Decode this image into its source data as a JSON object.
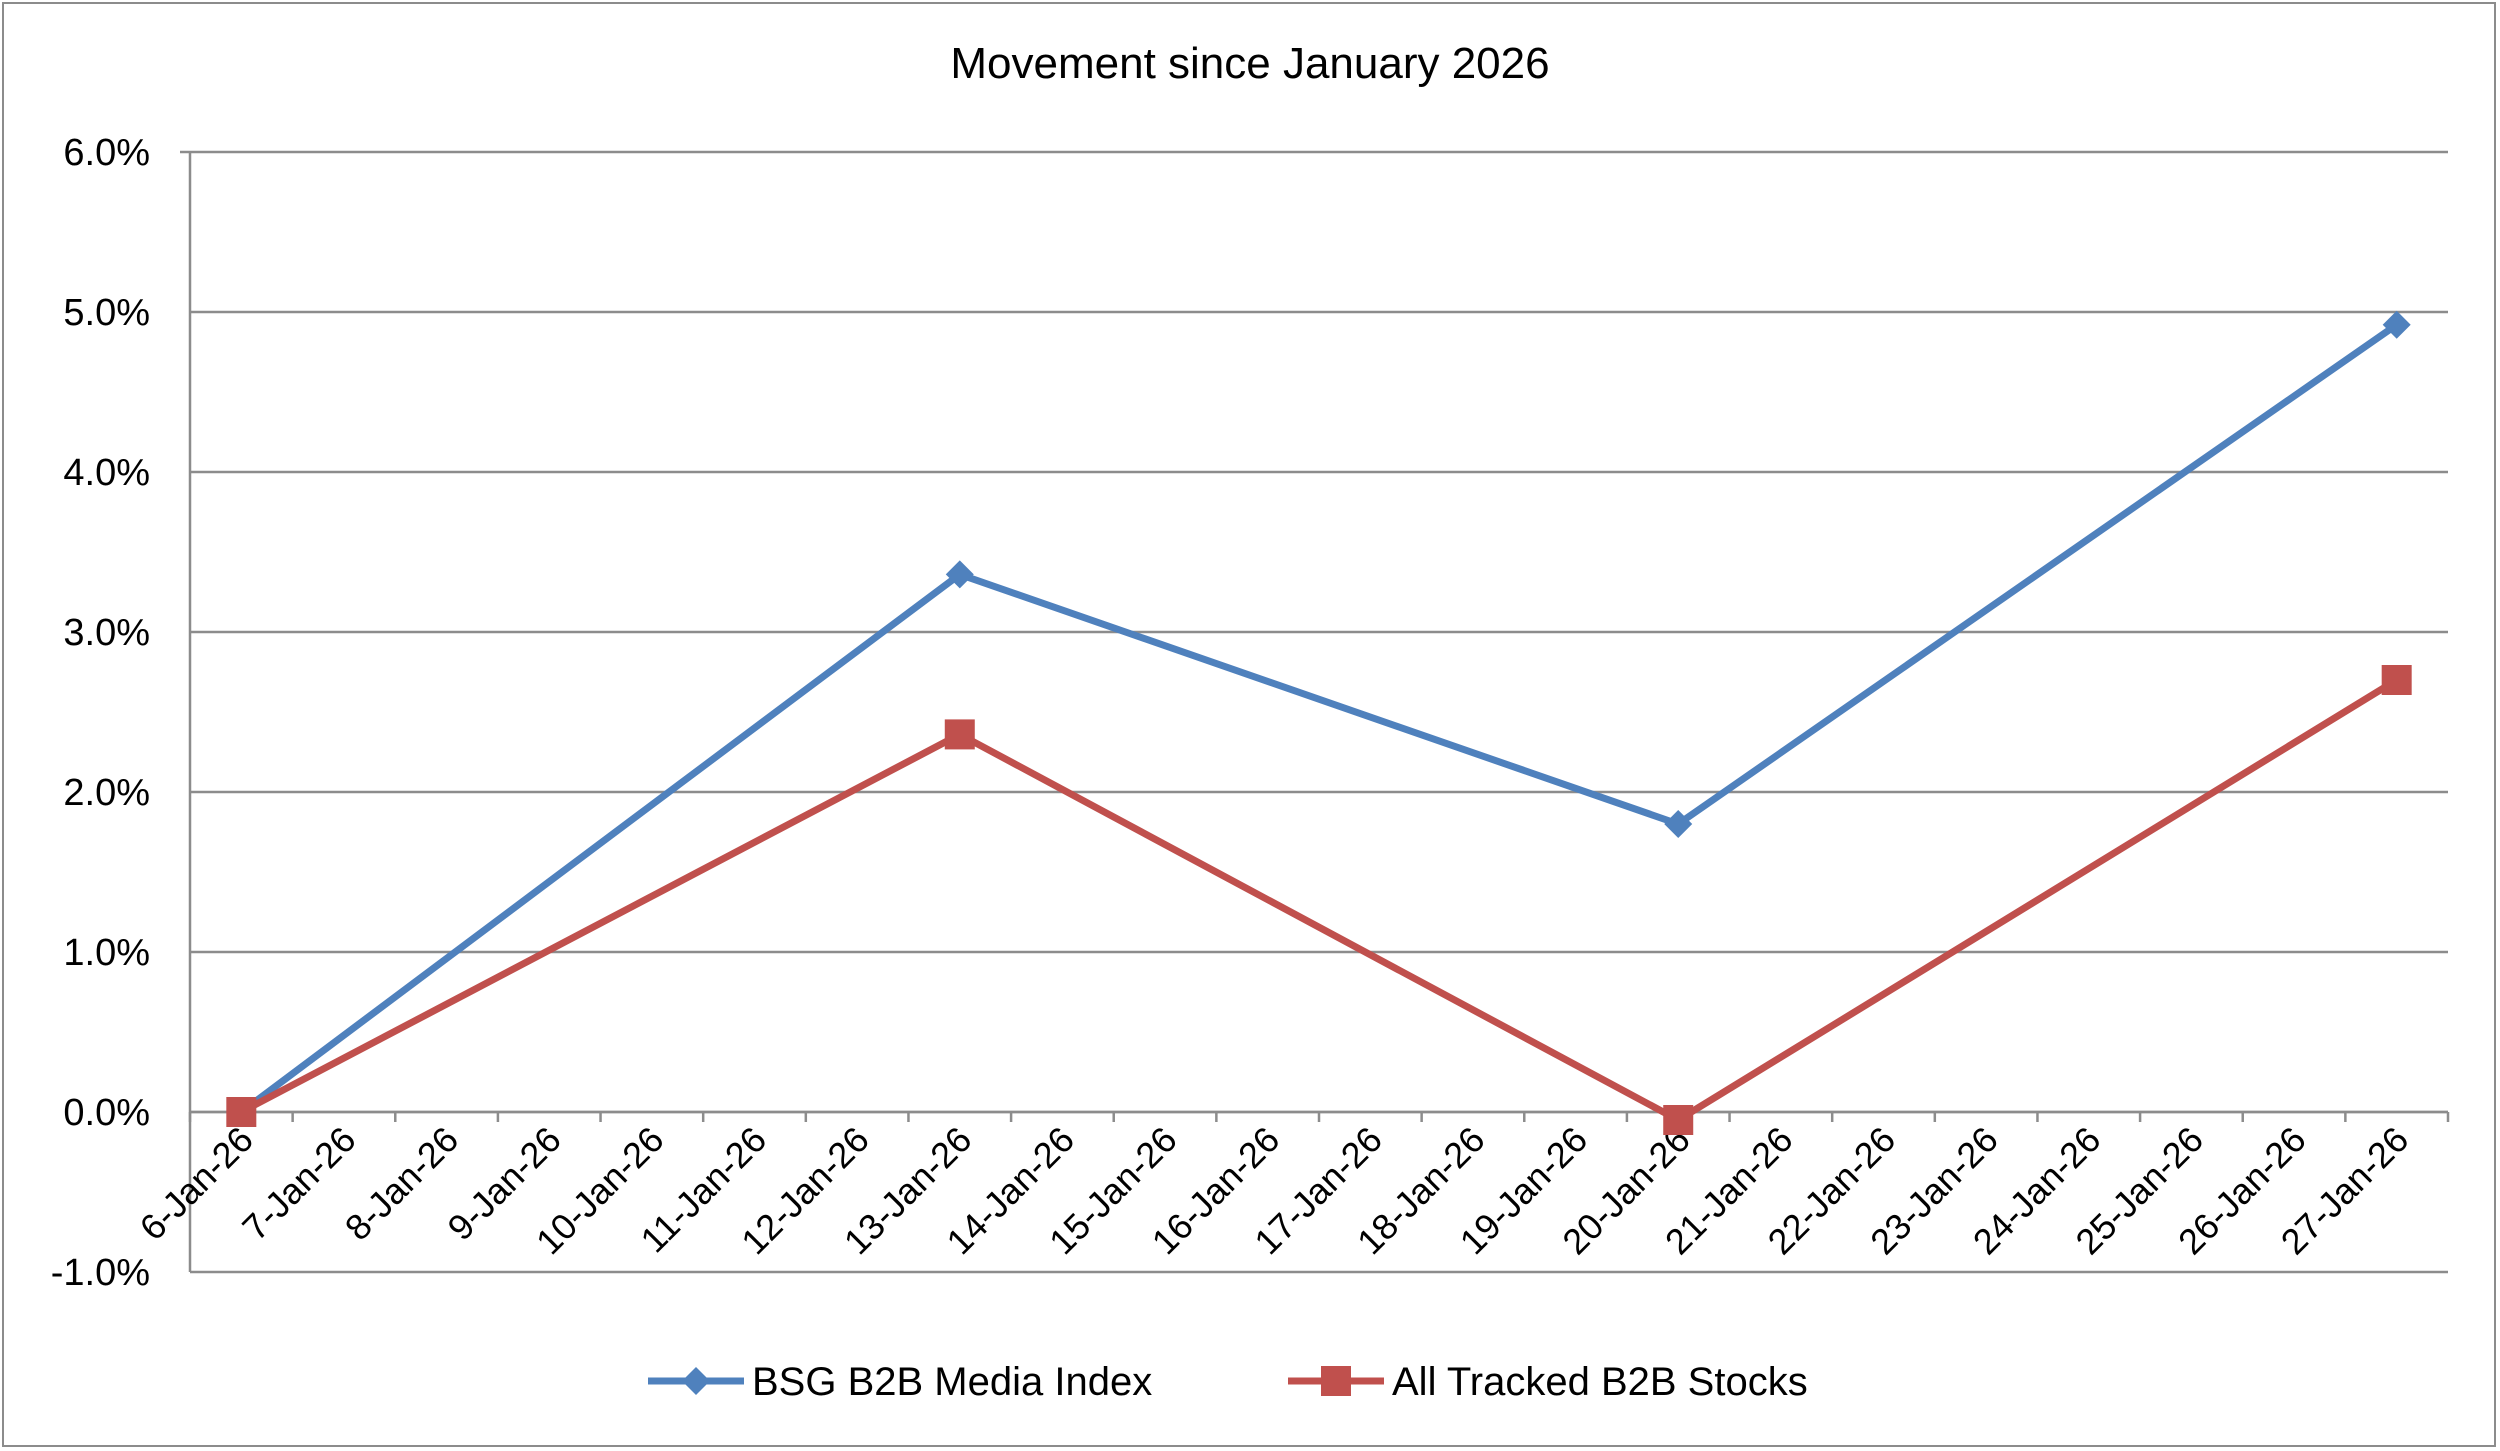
{
  "chart_data": {
    "type": "line",
    "title": "Movement since January 2026",
    "xlabel": "",
    "ylabel": "",
    "categories": [
      "6-Jan-26",
      "7-Jan-26",
      "8-Jan-26",
      "9-Jan-26",
      "10-Jan-26",
      "11-Jan-26",
      "12-Jan-26",
      "13-Jan-26",
      "14-Jan-26",
      "15-Jan-26",
      "16-Jan-26",
      "17-Jan-26",
      "18-Jan-26",
      "19-Jan-26",
      "20-Jan-26",
      "21-Jan-26",
      "22-Jan-26",
      "23-Jan-26",
      "24-Jan-26",
      "25-Jan-26",
      "26-Jan-26",
      "27-Jan-26"
    ],
    "y_ticks": [
      "-1.0%",
      "0.0%",
      "1.0%",
      "2.0%",
      "3.0%",
      "4.0%",
      "5.0%",
      "6.0%"
    ],
    "ylim": [
      -1.0,
      6.0
    ],
    "grid": true,
    "legend_position": "bottom",
    "series": [
      {
        "name": "BSG B2B Media Index",
        "color": "#4f81bd",
        "marker": "diamond",
        "points": [
          {
            "x": "6-Jan-26",
            "y": 0.0
          },
          {
            "x": "13-Jan-26",
            "y": 3.36
          },
          {
            "x": "20-Jan-26",
            "y": 1.8
          },
          {
            "x": "27-Jan-26",
            "y": 4.92
          }
        ]
      },
      {
        "name": "All Tracked B2B Stocks",
        "color": "#c0504d",
        "marker": "square",
        "points": [
          {
            "x": "6-Jan-26",
            "y": 0.0
          },
          {
            "x": "13-Jan-26",
            "y": 2.36
          },
          {
            "x": "20-Jan-26",
            "y": -0.05
          },
          {
            "x": "27-Jan-26",
            "y": 2.7
          }
        ]
      }
    ]
  }
}
